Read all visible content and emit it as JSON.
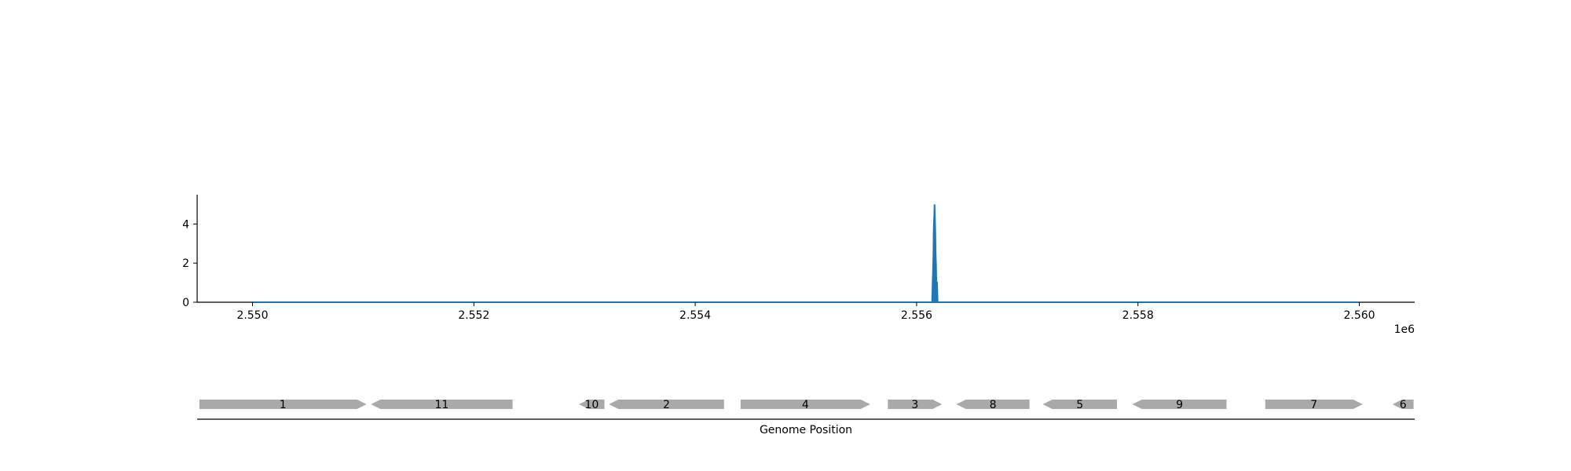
{
  "chart_data": [
    {
      "type": "area",
      "series": [
        {
          "color": "#1f77b4",
          "x": [
            2550000,
            2556140,
            2556145,
            2556150,
            2556152,
            2556154,
            2556156,
            2556158,
            2556160,
            2556162,
            2556164,
            2556166,
            2556168,
            2556170,
            2556172,
            2556175,
            2556178,
            2556180,
            2556185,
            2556190,
            2560000
          ],
          "y": [
            0,
            0,
            1,
            2,
            2.5,
            3.5,
            4,
            4.2,
            4.5,
            5,
            4.6,
            4.2,
            3.8,
            3.2,
            2.5,
            2,
            1.2,
            1,
            1,
            0,
            0
          ]
        }
      ],
      "xlim": [
        2549500,
        2560500
      ],
      "ylim": [
        0,
        5.5
      ],
      "xticks": [
        2550000,
        2552000,
        2554000,
        2556000,
        2558000,
        2560000
      ],
      "xtick_labels": [
        "2.550",
        "2.552",
        "2.554",
        "2.556",
        "2.558",
        "2.560"
      ],
      "x_offset_label": "1e6",
      "yticks": [
        0,
        2,
        4
      ],
      "ytick_labels": [
        "0",
        "2",
        "4"
      ],
      "grid": false
    },
    {
      "type": "gene-track",
      "xlabel": "Genome Position",
      "xlim": [
        2549500,
        2560500
      ],
      "gene_color": "#a9a9a9",
      "genes": [
        {
          "label": "1",
          "start": 2549520,
          "end": 2551030,
          "strand": "+"
        },
        {
          "label": "11",
          "start": 2551070,
          "end": 2552350,
          "strand": "-"
        },
        {
          "label": "10",
          "start": 2552950,
          "end": 2553180,
          "strand": "-"
        },
        {
          "label": "2",
          "start": 2553220,
          "end": 2554260,
          "strand": "-"
        },
        {
          "label": "4",
          "start": 2554410,
          "end": 2555580,
          "strand": "+"
        },
        {
          "label": "3",
          "start": 2555740,
          "end": 2556230,
          "strand": "+"
        },
        {
          "label": "8",
          "start": 2556360,
          "end": 2557020,
          "strand": "-"
        },
        {
          "label": "5",
          "start": 2557140,
          "end": 2557810,
          "strand": "-"
        },
        {
          "label": "9",
          "start": 2557950,
          "end": 2558800,
          "strand": "-"
        },
        {
          "label": "7",
          "start": 2559150,
          "end": 2560030,
          "strand": "+"
        },
        {
          "label": "6",
          "start": 2560300,
          "end": 2560490,
          "strand": "-"
        }
      ]
    }
  ]
}
